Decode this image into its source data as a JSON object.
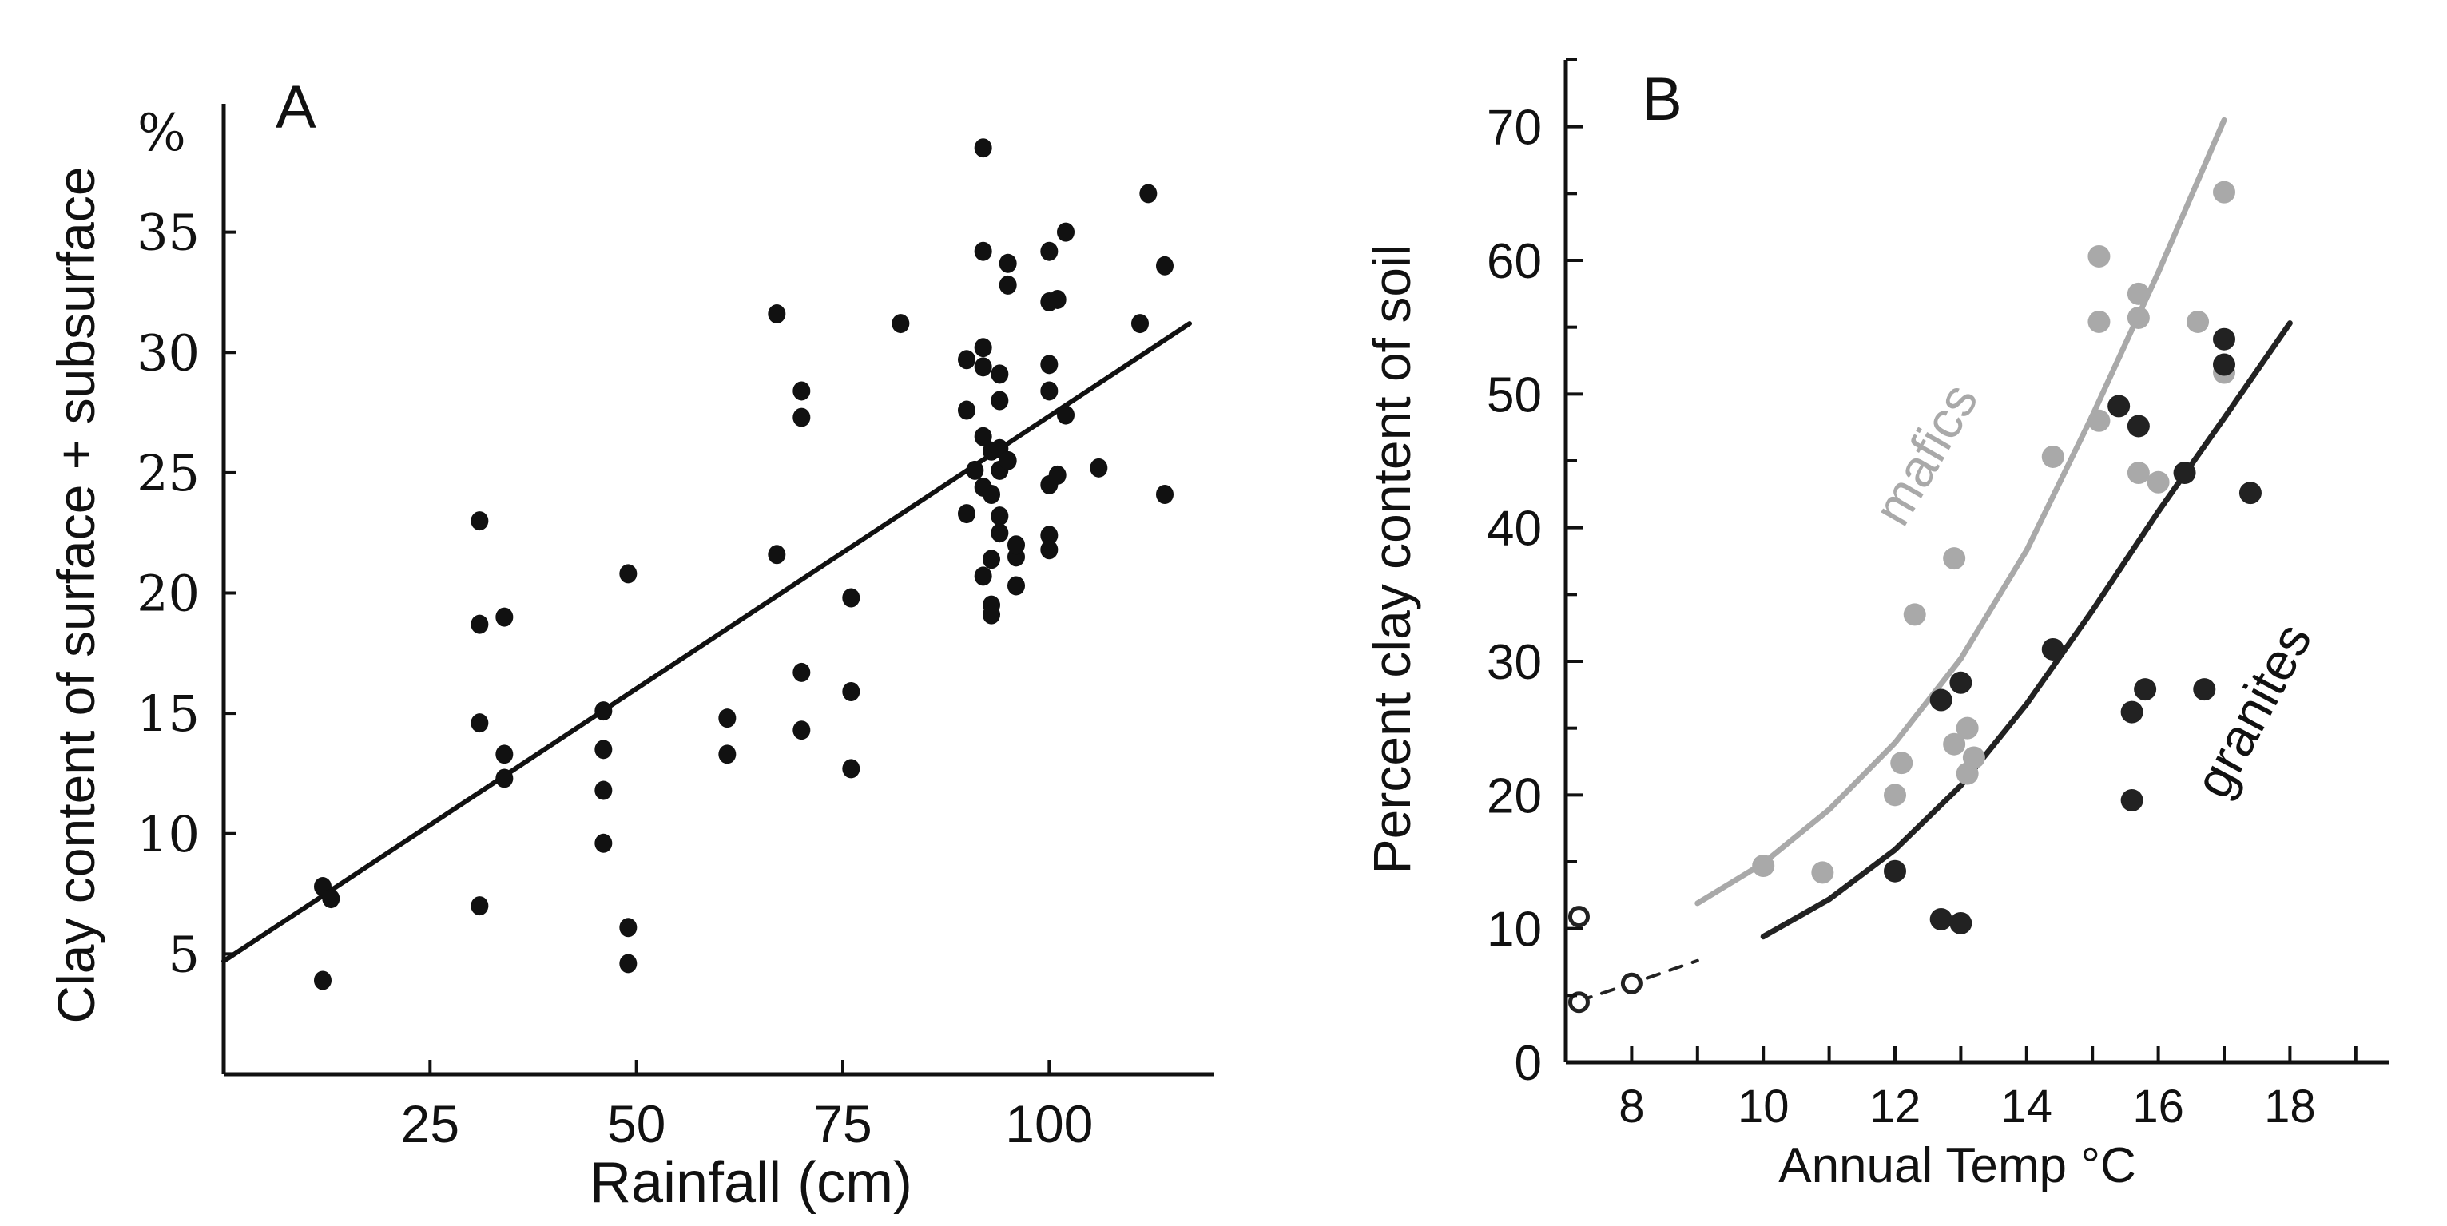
{
  "chart_data": [
    {
      "type": "scatter",
      "panel_label": "A",
      "xlabel": "Rainfall (cm)",
      "ylabel": "Clay content of surface + subsurface",
      "y_unit": "%",
      "xlim": [
        0,
        120
      ],
      "ylim": [
        0,
        40
      ],
      "x_ticks": [
        25,
        50,
        75,
        100
      ],
      "y_ticks": [
        5,
        10,
        15,
        20,
        25,
        30,
        35
      ],
      "x_tick_labels": [
        "25",
        "50",
        "75",
        "100"
      ],
      "y_tick_labels": [
        "5",
        "10",
        "15",
        "20",
        "25",
        "30",
        "35"
      ],
      "grid": false,
      "colors": {
        "points": "#111111",
        "line": "#111111"
      },
      "trend_line": {
        "x": [
          0,
          117
        ],
        "y": [
          4.7,
          31.2
        ]
      },
      "points": [
        [
          12,
          3.9
        ],
        [
          12,
          7.8
        ],
        [
          13,
          7.3
        ],
        [
          31,
          23
        ],
        [
          31,
          18.7
        ],
        [
          31,
          14.6
        ],
        [
          31,
          7
        ],
        [
          34,
          19
        ],
        [
          34,
          13.3
        ],
        [
          34,
          12.3
        ],
        [
          46,
          15.1
        ],
        [
          46,
          13.5
        ],
        [
          46,
          11.8
        ],
        [
          46,
          9.6
        ],
        [
          49,
          20.8
        ],
        [
          49,
          6.1
        ],
        [
          49,
          4.6
        ],
        [
          61,
          14.8
        ],
        [
          61,
          13.3
        ],
        [
          67,
          21.6
        ],
        [
          67,
          31.6
        ],
        [
          70,
          28.4
        ],
        [
          70,
          27.3
        ],
        [
          70,
          16.7
        ],
        [
          70,
          14.3
        ],
        [
          76,
          19.8
        ],
        [
          76,
          15.9
        ],
        [
          76,
          12.7
        ],
        [
          82,
          31.2
        ],
        [
          90,
          29.7
        ],
        [
          90,
          27.6
        ],
        [
          90,
          23.3
        ],
        [
          91,
          25.1
        ],
        [
          92,
          24.4
        ],
        [
          92,
          26.5
        ],
        [
          92,
          20.7
        ],
        [
          92,
          38.5
        ],
        [
          92,
          34.2
        ],
        [
          92,
          30.2
        ],
        [
          92,
          29.4
        ],
        [
          93,
          25.9
        ],
        [
          93,
          24.1
        ],
        [
          93,
          19.5
        ],
        [
          93,
          19.1
        ],
        [
          93,
          21.4
        ],
        [
          94,
          26
        ],
        [
          94,
          25.1
        ],
        [
          94,
          23.2
        ],
        [
          94,
          29.1
        ],
        [
          94,
          28
        ],
        [
          94,
          22.5
        ],
        [
          95,
          33.7
        ],
        [
          95,
          32.8
        ],
        [
          95,
          25.5
        ],
        [
          96,
          21.5
        ],
        [
          96,
          20.3
        ],
        [
          96,
          22
        ],
        [
          100,
          34.2
        ],
        [
          100,
          32.1
        ],
        [
          100,
          29.5
        ],
        [
          100,
          28.4
        ],
        [
          100,
          24.5
        ],
        [
          100,
          22.4
        ],
        [
          100,
          21.8
        ],
        [
          101,
          32.2
        ],
        [
          101,
          24.9
        ],
        [
          102,
          27.4
        ],
        [
          102,
          35
        ],
        [
          106,
          25.2
        ],
        [
          111,
          31.2
        ],
        [
          112,
          36.6
        ],
        [
          114,
          33.6
        ],
        [
          114,
          24.1
        ]
      ]
    },
    {
      "type": "scatter",
      "panel_label": "B",
      "xlabel": "Annual Temp °C",
      "ylabel": "Percent clay content of soil",
      "xlim": [
        7,
        19.5
      ],
      "ylim": [
        0,
        75
      ],
      "x_ticks": [
        8,
        10,
        12,
        14,
        16,
        18
      ],
      "y_ticks": [
        0,
        10,
        20,
        30,
        40,
        50,
        60,
        70
      ],
      "x_tick_labels": [
        "8",
        "10",
        "12",
        "14",
        "16",
        "18"
      ],
      "y_tick_labels": [
        "0",
        "10",
        "20",
        "30",
        "40",
        "50",
        "60",
        "70"
      ],
      "grid": false,
      "colors": {
        "mafics": "#a9a9a9",
        "granites": "#222222",
        "open_points": "#222222"
      },
      "series": [
        {
          "name": "mafics",
          "points": [
            [
              10,
              14.7
            ],
            [
              10.9,
              14.2
            ],
            [
              12,
              20
            ],
            [
              12.1,
              22.4
            ],
            [
              12.3,
              33.5
            ],
            [
              12.9,
              37.7
            ],
            [
              12.9,
              23.8
            ],
            [
              13.1,
              25
            ],
            [
              13.1,
              21.6
            ],
            [
              13.2,
              22.8
            ],
            [
              14.4,
              45.3
            ],
            [
              15.1,
              60.3
            ],
            [
              15.1,
              55.4
            ],
            [
              15.1,
              48
            ],
            [
              15.7,
              57.5
            ],
            [
              15.7,
              55.7
            ],
            [
              15.7,
              44.1
            ],
            [
              16,
              43.4
            ],
            [
              16.6,
              55.4
            ],
            [
              17,
              51.6
            ],
            [
              17,
              65.1
            ]
          ],
          "curve": [
            [
              9,
              11.9
            ],
            [
              10,
              14.9
            ],
            [
              11,
              18.9
            ],
            [
              12,
              23.9
            ],
            [
              13,
              30.2
            ],
            [
              14,
              38.3
            ],
            [
              15,
              48.4
            ],
            [
              16,
              59.1
            ],
            [
              17,
              70.5
            ]
          ]
        },
        {
          "name": "granites",
          "points": [
            [
              12,
              14.3
            ],
            [
              12.7,
              10.7
            ],
            [
              12.7,
              27.1
            ],
            [
              13,
              28.4
            ],
            [
              13,
              10.4
            ],
            [
              14.4,
              30.9
            ],
            [
              15.4,
              49.1
            ],
            [
              15.6,
              26.2
            ],
            [
              15.6,
              19.6
            ],
            [
              15.7,
              47.6
            ],
            [
              15.8,
              27.9
            ],
            [
              16.4,
              44.1
            ],
            [
              16.7,
              27.9
            ],
            [
              17,
              54.1
            ],
            [
              17,
              52.2
            ],
            [
              17.4,
              42.6
            ]
          ],
          "curve": [
            [
              10,
              9.4
            ],
            [
              11,
              12.2
            ],
            [
              12,
              15.9
            ],
            [
              13,
              20.7
            ],
            [
              14,
              26.8
            ],
            [
              15,
              33.8
            ],
            [
              16,
              41.2
            ],
            [
              17,
              48.2
            ],
            [
              18,
              55.3
            ]
          ]
        },
        {
          "name": "",
          "marker": "open",
          "points": [
            [
              7.2,
              10.9
            ],
            [
              7.2,
              4.5
            ],
            [
              8,
              5.9
            ]
          ],
          "curve": [
            [
              7.2,
              4.6
            ],
            [
              8,
              5.9
            ],
            [
              9,
              7.6
            ]
          ]
        }
      ],
      "labels": [
        {
          "text": "mafics",
          "series": "mafics"
        },
        {
          "text": "granites",
          "series": "granites"
        }
      ]
    }
  ]
}
